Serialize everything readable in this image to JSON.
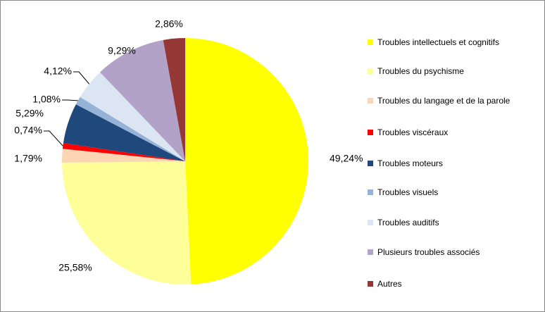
{
  "chart_data": {
    "type": "pie",
    "categories": [
      "Troubles intellectuels et cognitifs",
      "Troubles du psychisme",
      "Troubles du langage et de la parole",
      "Troubles viscéraux",
      "Troubles moteurs",
      "Troubles visuels",
      "Troubles auditifs",
      "Plusieurs troubles associés",
      "Autres"
    ],
    "values": [
      49.24,
      25.58,
      1.79,
      0.74,
      5.29,
      1.08,
      4.12,
      9.29,
      2.86
    ],
    "value_labels": [
      "49,24%",
      "25,58%",
      "1,79%",
      "0,74%",
      "5,29%",
      "1,08%",
      "4,12%",
      "9,29%",
      "2,86%"
    ],
    "colors": [
      "#ffff00",
      "#ffff99",
      "#fcd5b4",
      "#ff0000",
      "#1f497d",
      "#95b3d7",
      "#dce6f2",
      "#b3a2c7",
      "#953735"
    ],
    "legend": "right"
  }
}
